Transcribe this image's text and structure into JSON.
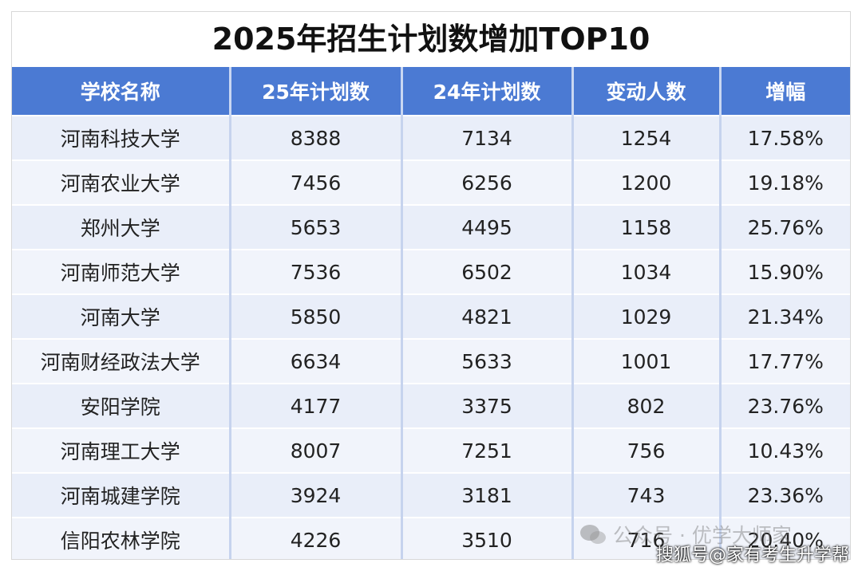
{
  "title": "2025年招生计划数增加TOP10",
  "table": {
    "header": [
      "学校名称",
      "25年计划数",
      "24年计划数",
      "变动人数",
      "增幅"
    ],
    "rows": [
      [
        "河南科技大学",
        "8388",
        "7134",
        "1254",
        "17.58%"
      ],
      [
        "河南农业大学",
        "7456",
        "6256",
        "1200",
        "19.18%"
      ],
      [
        "郑州大学",
        "5653",
        "4495",
        "1158",
        "25.76%"
      ],
      [
        "河南师范大学",
        "7536",
        "6502",
        "1034",
        "15.90%"
      ],
      [
        "河南大学",
        "5850",
        "4821",
        "1029",
        "21.34%"
      ],
      [
        "河南财经政法大学",
        "6634",
        "5633",
        "1001",
        "17.77%"
      ],
      [
        "安阳学院",
        "4177",
        "3375",
        "802",
        "23.76%"
      ],
      [
        "河南理工大学",
        "8007",
        "7251",
        "756",
        "10.43%"
      ],
      [
        "河南城建学院",
        "3924",
        "3181",
        "743",
        "23.36%"
      ],
      [
        "信阳农林学院",
        "4226",
        "3510",
        "716",
        "20.40%"
      ]
    ]
  },
  "watermarks": [
    "公众号 · 优学大师家",
    "搜狐号@家有考生升学帮"
  ]
}
